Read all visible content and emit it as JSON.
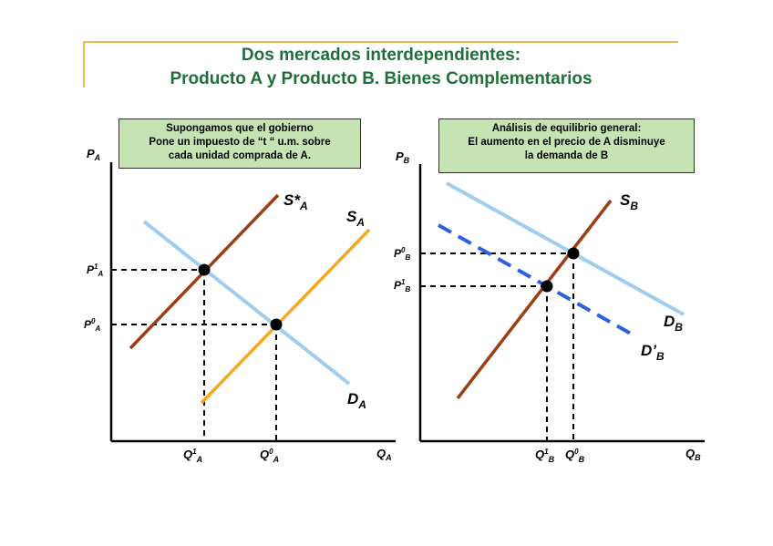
{
  "title": {
    "line1": "Dos mercados interdependientes:",
    "line2": "Producto A y Producto B.  Bienes Complementarios"
  },
  "market_a": {
    "note": [
      "Supongamos que el gobierno",
      "Pone un impuesto de “t “ u.m. sobre",
      "cada unidad comprada de A."
    ],
    "axis_y": {
      "base": "P",
      "sub": "A"
    },
    "axis_x": {
      "base": "Q",
      "sub": "A"
    },
    "supply_new": {
      "base": "S*",
      "sub": "A"
    },
    "supply": {
      "base": "S",
      "sub": "A"
    },
    "demand": {
      "base": "D",
      "sub": "A"
    },
    "price_1": {
      "base": "P",
      "sup": "1",
      "sub": "A"
    },
    "price_0": {
      "base": "P",
      "sup": "0",
      "sub": "A"
    },
    "qty_1": {
      "base": "Q",
      "sup": "1",
      "sub": "A"
    },
    "qty_0": {
      "base": "Q",
      "sup": "0",
      "sub": "A"
    }
  },
  "market_b": {
    "note": [
      "Análisis de equilibrio general:",
      "El aumento en el precio de A disminuye",
      "la demanda de B"
    ],
    "axis_y": {
      "base": "P",
      "sub": "B"
    },
    "axis_x": {
      "base": "Q",
      "sub": "B"
    },
    "supply": {
      "base": "S",
      "sub": "B"
    },
    "demand": {
      "base": "D",
      "sub": "B"
    },
    "demand_new": {
      "base": "D’",
      "sub": "B"
    },
    "price_0": {
      "base": "P",
      "sup": "0",
      "sub": "B"
    },
    "price_1": {
      "base": "P",
      "sup": "1",
      "sub": "B"
    },
    "qty_1": {
      "base": "Q",
      "sup": "1",
      "sub": "B"
    },
    "qty_0": {
      "base": "Q",
      "sup": "0",
      "sub": "B"
    }
  },
  "colors": {
    "title": "#1f6f3a",
    "note_bg": "#c6e4b3",
    "supply_original": "#f5a623",
    "supply_shifted": "#9c3d14",
    "demand": "#9fcdf0",
    "demand_shifted": "#2f5fe0",
    "frame_line": "#d4a81c"
  }
}
